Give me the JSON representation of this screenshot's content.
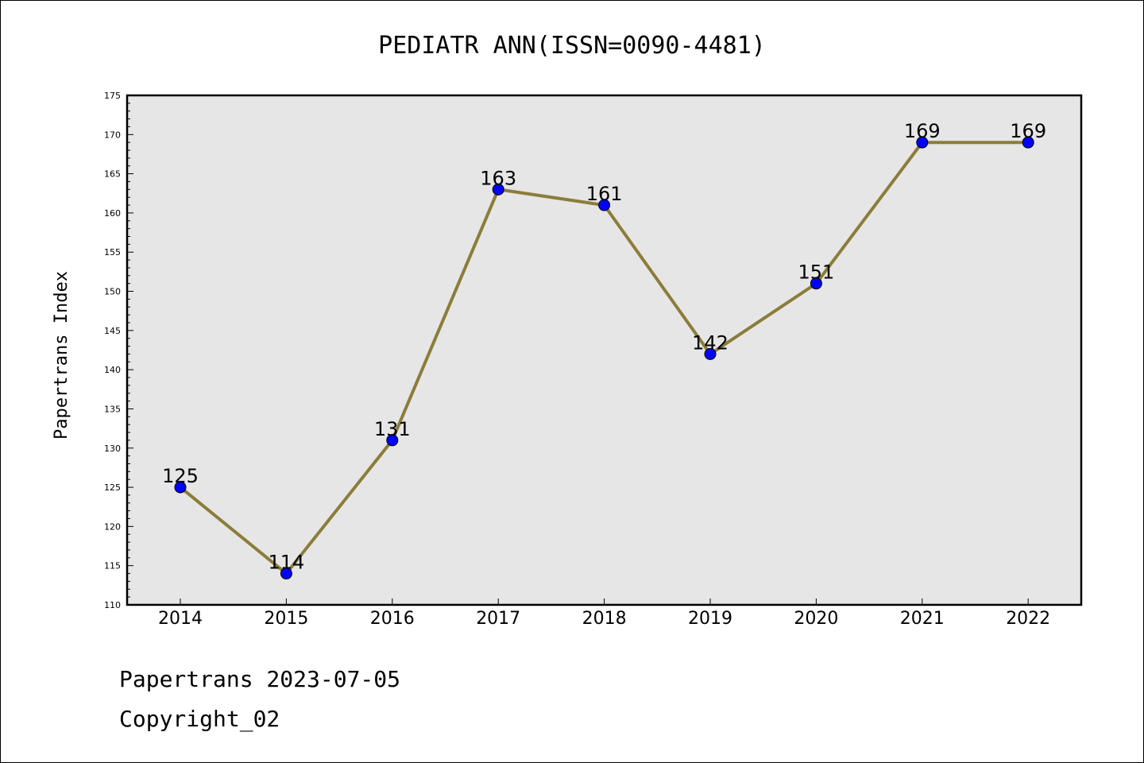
{
  "chart_data": {
    "type": "line",
    "title": "PEDIATR ANN(ISSN=0090-4481)",
    "xlabel": "",
    "ylabel": "Papertrans Index",
    "categories": [
      "2014",
      "2015",
      "2016",
      "2017",
      "2018",
      "2019",
      "2020",
      "2021",
      "2022"
    ],
    "series": [
      {
        "values": [
          125,
          114,
          131,
          163,
          161,
          142,
          151,
          169,
          169
        ]
      }
    ],
    "ylim": [
      110,
      175
    ],
    "yticks": [
      110,
      115,
      120,
      125,
      130,
      135,
      140,
      145,
      150,
      155,
      160,
      165,
      170,
      175
    ],
    "grid": false,
    "legend": "none",
    "data_labels": true,
    "colors": {
      "plot_background": "#e6e6e6",
      "line": "#8b7d3a",
      "marker": "#0000ff",
      "axis": "#000000"
    }
  },
  "footer": {
    "line1": "Papertrans 2023-07-05",
    "line2": "Copyright_02"
  }
}
